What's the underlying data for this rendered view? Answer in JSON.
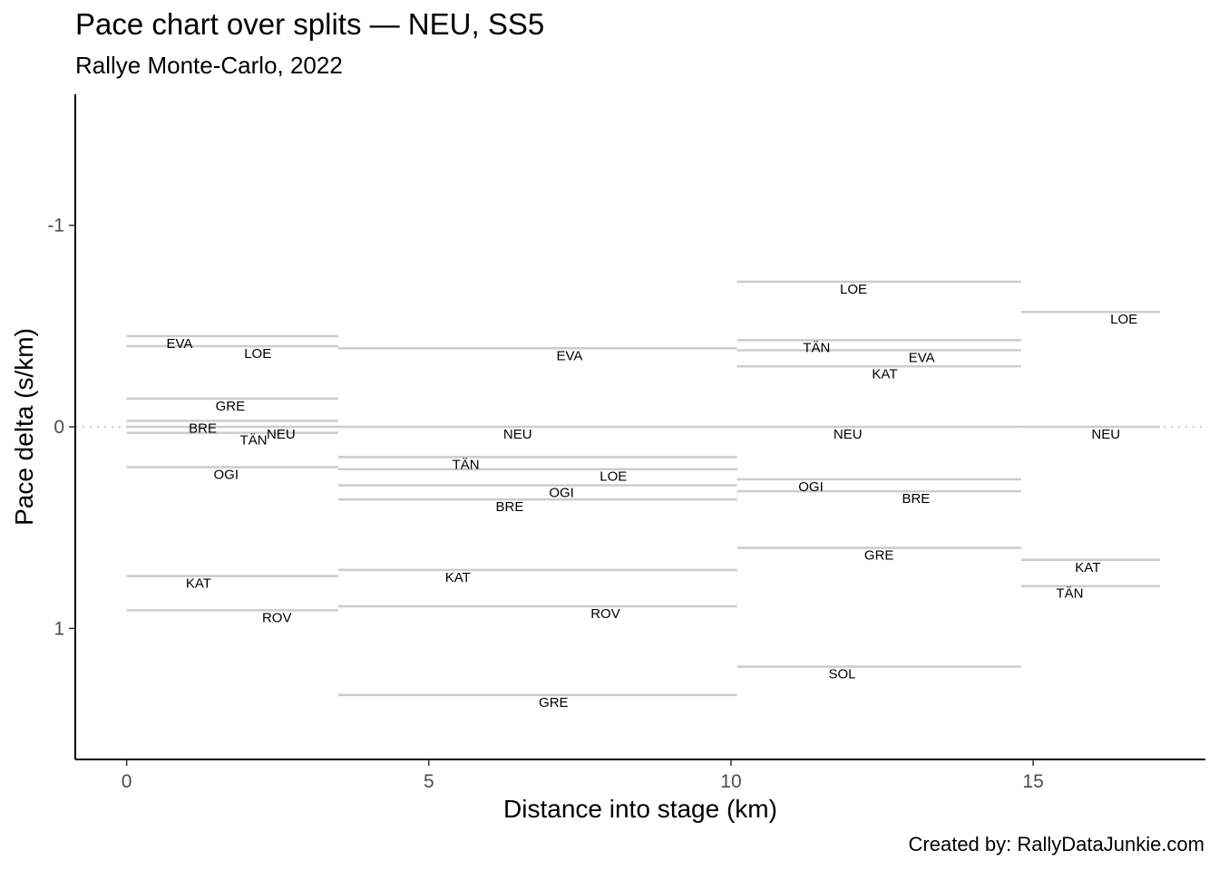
{
  "chart_data": {
    "type": "line",
    "title": "Pace chart over splits — NEU, SS5",
    "subtitle": "Rallye Monte-Carlo, 2022",
    "caption": "Created by: RallyDataJunkie.com",
    "xlabel": "Distance into stage (km)",
    "ylabel": "Pace delta (s/km)",
    "xlim": [
      -0.85,
      17.85
    ],
    "ylim": [
      1.65,
      -1.65
    ],
    "y_reversed": true,
    "x_ticks": [
      0,
      5,
      10,
      15
    ],
    "x_tick_labels": [
      "0",
      "5",
      "10",
      "15"
    ],
    "y_ticks": [
      -1,
      0,
      1
    ],
    "y_tick_labels": [
      "-1",
      "0",
      "1"
    ],
    "grid": false,
    "reference_line": 0,
    "segments": [
      {
        "driver": "EVA",
        "x_start": 0,
        "x_end": 3.5,
        "pace": -0.45
      },
      {
        "driver": "LOE",
        "x_start": 0,
        "x_end": 3.5,
        "pace": -0.4
      },
      {
        "driver": "GRE",
        "x_start": 0,
        "x_end": 3.5,
        "pace": -0.14
      },
      {
        "driver": "BRE",
        "x_start": 0,
        "x_end": 3.5,
        "pace": -0.03
      },
      {
        "driver": "NEU",
        "x_start": 0,
        "x_end": 3.5,
        "pace": 0.0
      },
      {
        "driver": "TÄN",
        "x_start": 0,
        "x_end": 3.5,
        "pace": 0.03
      },
      {
        "driver": "OGI",
        "x_start": 0,
        "x_end": 3.5,
        "pace": 0.2
      },
      {
        "driver": "KAT",
        "x_start": 0,
        "x_end": 3.5,
        "pace": 0.74
      },
      {
        "driver": "ROV",
        "x_start": 0,
        "x_end": 3.5,
        "pace": 0.91
      },
      {
        "driver": "EVA",
        "x_start": 3.5,
        "x_end": 10.1,
        "pace": -0.39
      },
      {
        "driver": "NEU",
        "x_start": 3.5,
        "x_end": 10.1,
        "pace": 0.0
      },
      {
        "driver": "TÄN",
        "x_start": 3.5,
        "x_end": 10.1,
        "pace": 0.15
      },
      {
        "driver": "LOE",
        "x_start": 3.5,
        "x_end": 10.1,
        "pace": 0.21
      },
      {
        "driver": "OGI",
        "x_start": 3.5,
        "x_end": 10.1,
        "pace": 0.29
      },
      {
        "driver": "BRE",
        "x_start": 3.5,
        "x_end": 10.1,
        "pace": 0.36
      },
      {
        "driver": "KAT",
        "x_start": 3.5,
        "x_end": 10.1,
        "pace": 0.71
      },
      {
        "driver": "ROV",
        "x_start": 3.5,
        "x_end": 10.1,
        "pace": 0.89
      },
      {
        "driver": "GRE",
        "x_start": 3.5,
        "x_end": 10.1,
        "pace": 1.33
      },
      {
        "driver": "LOE",
        "x_start": 10.1,
        "x_end": 14.8,
        "pace": -0.72
      },
      {
        "driver": "TÄN",
        "x_start": 10.1,
        "x_end": 14.8,
        "pace": -0.43
      },
      {
        "driver": "EVA",
        "x_start": 10.1,
        "x_end": 14.8,
        "pace": -0.38
      },
      {
        "driver": "KAT",
        "x_start": 10.1,
        "x_end": 14.8,
        "pace": -0.3
      },
      {
        "driver": "NEU",
        "x_start": 10.1,
        "x_end": 14.8,
        "pace": 0.0
      },
      {
        "driver": "OGI",
        "x_start": 10.1,
        "x_end": 14.8,
        "pace": 0.26
      },
      {
        "driver": "BRE",
        "x_start": 10.1,
        "x_end": 14.8,
        "pace": 0.32
      },
      {
        "driver": "GRE",
        "x_start": 10.1,
        "x_end": 14.8,
        "pace": 0.6
      },
      {
        "driver": "SOL",
        "x_start": 10.1,
        "x_end": 14.8,
        "pace": 1.19
      },
      {
        "driver": "LOE",
        "x_start": 14.8,
        "x_end": 17.1,
        "pace": -0.57
      },
      {
        "driver": "NEU",
        "x_start": 14.8,
        "x_end": 17.1,
        "pace": 0.0
      },
      {
        "driver": "KAT",
        "x_start": 14.8,
        "x_end": 17.1,
        "pace": 0.66
      },
      {
        "driver": "TÄN",
        "x_start": 14.8,
        "x_end": 17.1,
        "pace": 0.79
      }
    ],
    "segment_color": "#cccccc",
    "reference_color": "#cccccc"
  }
}
